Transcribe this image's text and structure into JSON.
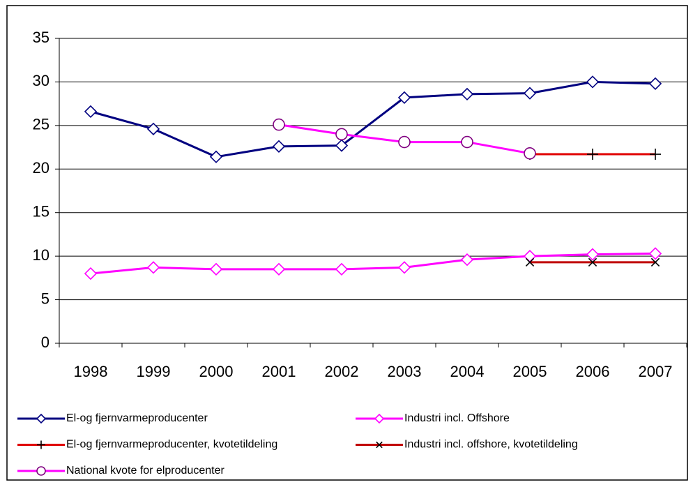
{
  "chart_data": {
    "type": "line",
    "categories": [
      "1998",
      "1999",
      "2000",
      "2001",
      "2002",
      "2003",
      "2004",
      "2005",
      "2006",
      "2007"
    ],
    "ylim": [
      0,
      35
    ],
    "yticks": [
      0,
      5,
      10,
      15,
      20,
      25,
      30,
      35
    ],
    "grid": true,
    "legend": "bottom",
    "series": [
      {
        "name": "El-og fjernvarmeproducenter",
        "color": "#000080",
        "marker": "diamond",
        "marker_color": "#000080",
        "values": [
          26.6,
          24.6,
          21.4,
          22.6,
          22.7,
          28.2,
          28.6,
          28.7,
          30.0,
          29.8
        ]
      },
      {
        "name": "Industri incl. Offshore",
        "color": "#ff00ff",
        "marker": "diamond",
        "marker_color": "#ff00ff",
        "values": [
          8.0,
          8.7,
          8.5,
          8.5,
          8.5,
          8.7,
          9.6,
          10.0,
          10.2,
          10.3
        ]
      },
      {
        "name": "El-og fjernvarmeproducenter, kvotetildeling",
        "color": "#e00000",
        "marker": "plus",
        "marker_color": "#000000",
        "values": [
          null,
          null,
          null,
          null,
          null,
          null,
          null,
          21.7,
          21.7,
          21.7
        ]
      },
      {
        "name": "Industri incl. offshore, kvotetildeling",
        "color": "#c00000",
        "marker": "x",
        "marker_color": "#000000",
        "values": [
          null,
          null,
          null,
          null,
          null,
          null,
          null,
          9.3,
          9.3,
          9.3
        ]
      },
      {
        "name": "National kvote for elproducenter",
        "color": "#ff00ff",
        "marker": "circle",
        "marker_color": "#800080",
        "values": [
          null,
          null,
          null,
          25.1,
          24.0,
          23.1,
          23.1,
          21.8,
          null,
          null
        ]
      }
    ]
  }
}
